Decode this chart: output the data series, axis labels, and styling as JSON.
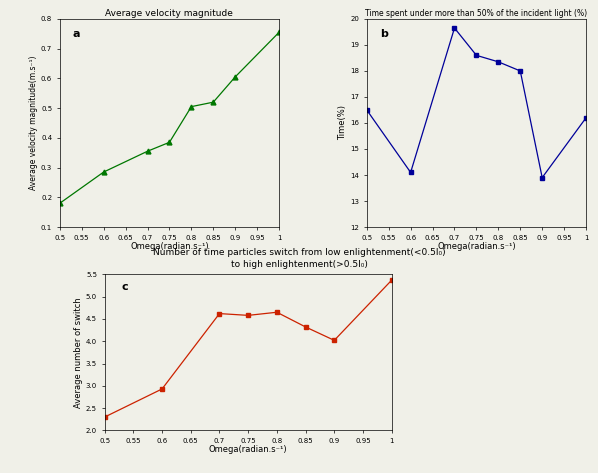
{
  "omega": [
    0.5,
    0.6,
    0.7,
    0.75,
    0.8,
    0.85,
    0.9,
    1.0
  ],
  "vel_a": [
    0.18,
    0.285,
    0.355,
    0.385,
    0.505,
    0.52,
    0.605,
    0.755
  ],
  "time_b": [
    16.5,
    14.1,
    19.65,
    18.6,
    18.35,
    18.0,
    13.9,
    16.2
  ],
  "switch_c": [
    2.3,
    2.93,
    4.62,
    4.58,
    4.65,
    4.32,
    4.02,
    5.37
  ],
  "title_a": "Average velocity magnitude",
  "title_b": "Time spent under more than 50% of the incident light (%)",
  "title_c": "Number of time particles switch from low enlightenment(<0.5I₀)\nto high enlightenment(>0.5I₀)",
  "xlabel": "Omega(radian.s⁻¹)",
  "ylabel_a": "Average velocity magnitude(m.s⁻¹)",
  "ylabel_b": "Time(%)",
  "ylabel_c": "Average number of switch",
  "color_a": "#007700",
  "color_b": "#000099",
  "color_c": "#CC2200",
  "ylim_a": [
    0.1,
    0.8
  ],
  "ylim_b": [
    12,
    20
  ],
  "ylim_c": [
    2.0,
    5.5
  ],
  "yticks_a": [
    0.1,
    0.2,
    0.3,
    0.4,
    0.5,
    0.6,
    0.7,
    0.8
  ],
  "yticks_b": [
    12,
    13,
    14,
    15,
    16,
    17,
    18,
    19,
    20
  ],
  "yticks_c": [
    2.0,
    2.5,
    3.0,
    3.5,
    4.0,
    4.5,
    5.0,
    5.5
  ],
  "xticks": [
    0.5,
    0.55,
    0.6,
    0.65,
    0.7,
    0.75,
    0.8,
    0.85,
    0.9,
    0.95,
    1.0
  ],
  "xtick_labels": [
    "0.5",
    "0.55",
    "0.6",
    "0.65",
    "0.7",
    "0.75",
    "0.8",
    "0.85",
    "0.9",
    "0.95",
    "1"
  ],
  "label_a": "a",
  "label_b": "b",
  "label_c": "c",
  "bg_color": "#f0f0e8"
}
